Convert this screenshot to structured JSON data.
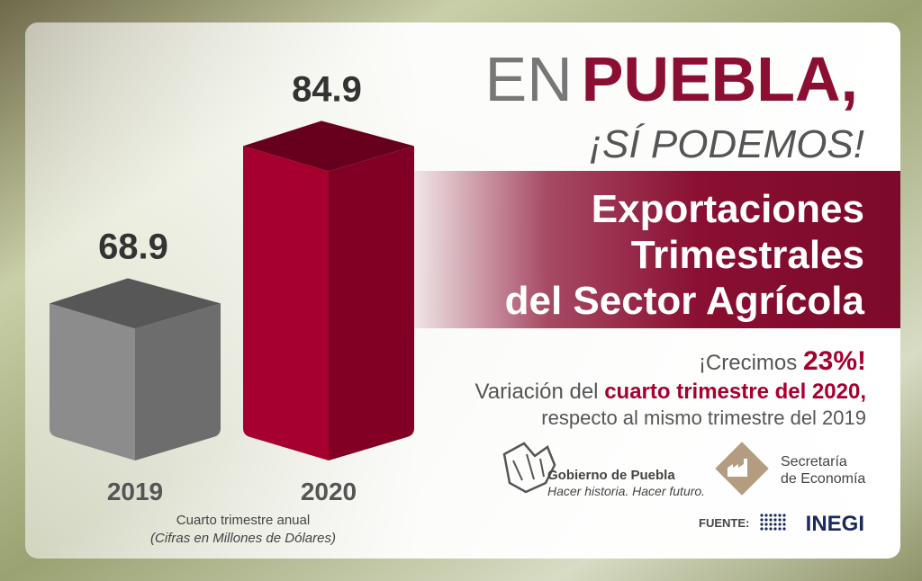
{
  "chart_data": {
    "type": "bar",
    "categories": [
      "2019",
      "2020"
    ],
    "values": [
      68.9,
      84.9
    ],
    "colors": [
      "#8c8c8c",
      "#a6002e"
    ],
    "x_label": "Cuarto trimestre anual",
    "note": "(Cifras en Millones de Dólares)"
  },
  "header": {
    "pre": "EN",
    "main": "PUEBLA,",
    "sub": "¡SÍ PODEMOS!"
  },
  "title": {
    "lines": [
      "Exportaciones",
      "Trimestrales",
      "del Sector Agrícola"
    ]
  },
  "highlight": {
    "line1": [
      "¡Crecimos ",
      "23%!"
    ],
    "line2": [
      "Variación del ",
      "cuarto trimestre del 2020,"
    ],
    "line3": "respecto al mismo trimestre del 2019"
  },
  "logos": {
    "gov_name": "Gobierno de Puebla",
    "gov_motto": "Hacer historia. Hacer futuro.",
    "se_line1": "Secretaría",
    "se_line2": "de Economía",
    "source_label": "FUENTE:",
    "source": "INEGI"
  }
}
